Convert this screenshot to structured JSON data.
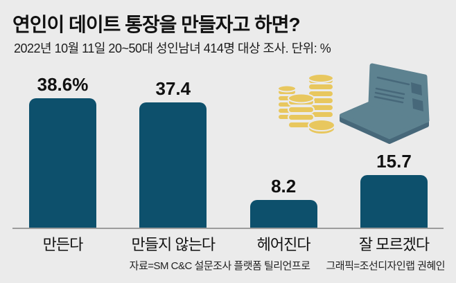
{
  "page": {
    "title": "연인이 데이트 통장을 만들자고 하면?",
    "subtitle": "2022년 10월 11일 20~50대 성인남녀 414명 대상 조사. 단위: %",
    "source": "자료=SM C&C 설문조사 플랫폼 틸리언프로",
    "credit": "그래픽=조선디자인랩 권혜인"
  },
  "chart_data": {
    "type": "bar",
    "title": "연인이 데이트 통장을 만들자고 하면?",
    "subtitle": "2022년 10월 11일 20~50대 성인남녀 414명 대상 조사",
    "unit": "%",
    "categories": [
      "만든다",
      "만들지 않는다",
      "헤어진다",
      "잘 모르겠다"
    ],
    "values": [
      38.6,
      37.4,
      8.2,
      15.7
    ],
    "value_labels": [
      "38.6%",
      "37.4",
      "8.2",
      "15.7"
    ],
    "ylim": [
      0,
      45
    ],
    "grid": false,
    "legend": false,
    "bar_color": "#0d506c"
  },
  "illustration": {
    "icons": [
      "coins-icon",
      "laptop-icon"
    ]
  },
  "theme": {
    "background": "#ebebeb",
    "bar": "#0d506c",
    "coin": "#e8c75e",
    "laptop": "#5d8290",
    "laptop_dark": "#47687a",
    "axis": "#9c9c9c",
    "text": "#111111"
  }
}
